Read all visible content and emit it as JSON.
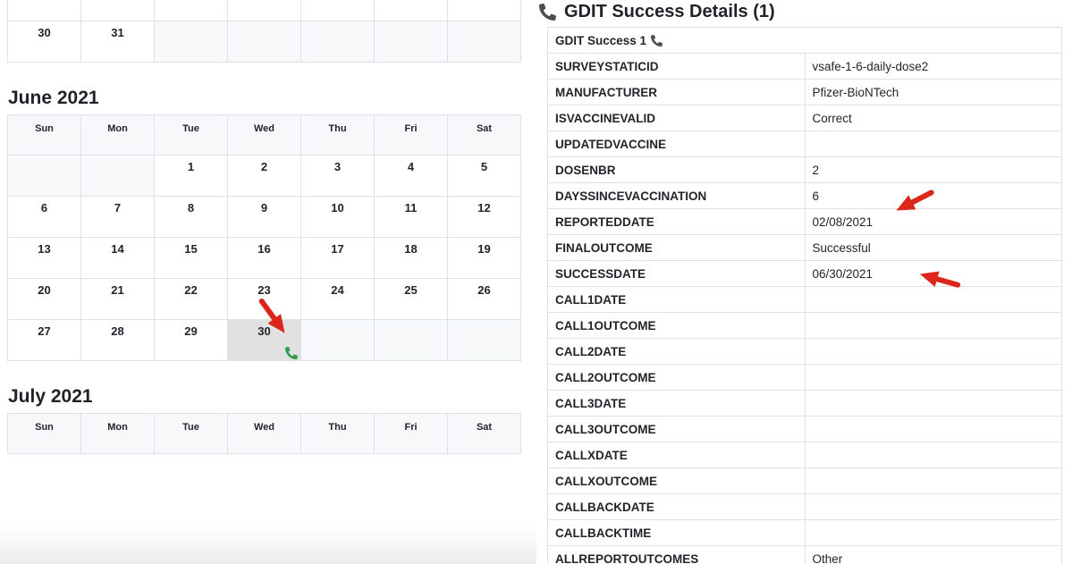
{
  "colors": {
    "arrow_red": "#dc261b",
    "phone_green": "#2f9e4f",
    "phone_dark": "#4a4f54",
    "highlight_gray": "#e1e1e1"
  },
  "calendars": {
    "may": {
      "trailing_week": [
        "30",
        "31",
        "",
        "",
        "",
        "",
        ""
      ]
    },
    "june": {
      "title": "June 2021",
      "weekdays": [
        "Sun",
        "Mon",
        "Tue",
        "Wed",
        "Thu",
        "Fri",
        "Sat"
      ],
      "weeks": [
        [
          "",
          "",
          "1",
          "2",
          "3",
          "4",
          "5"
        ],
        [
          "6",
          "7",
          "8",
          "9",
          "10",
          "11",
          "12"
        ],
        [
          "13",
          "14",
          "15",
          "16",
          "17",
          "18",
          "19"
        ],
        [
          "20",
          "21",
          "22",
          "23",
          "24",
          "25",
          "26"
        ],
        [
          "27",
          "28",
          "29",
          "30",
          "",
          "",
          ""
        ]
      ],
      "highlighted_day": "30",
      "event_day": "30"
    },
    "july": {
      "title": "July 2021",
      "weekdays": [
        "Sun",
        "Mon",
        "Tue",
        "Wed",
        "Thu",
        "Fri",
        "Sat"
      ]
    }
  },
  "details": {
    "title": "GDIT Success Details (1)",
    "group_header": "GDIT Success 1",
    "fields": [
      {
        "label": "SURVEYSTATICID",
        "value": "vsafe-1-6-daily-dose2"
      },
      {
        "label": "MANUFACTURER",
        "value": "Pfizer-BioNTech"
      },
      {
        "label": "ISVACCINEVALID",
        "value": "Correct"
      },
      {
        "label": "UPDATEDVACCINE",
        "value": ""
      },
      {
        "label": "DOSENBR",
        "value": "2"
      },
      {
        "label": "DAYSSINCEVACCINATION",
        "value": "6"
      },
      {
        "label": "REPORTEDDATE",
        "value": "02/08/2021"
      },
      {
        "label": "FINALOUTCOME",
        "value": "Successful"
      },
      {
        "label": "SUCCESSDATE",
        "value": "06/30/2021"
      },
      {
        "label": "CALL1DATE",
        "value": ""
      },
      {
        "label": "CALL1OUTCOME",
        "value": ""
      },
      {
        "label": "CALL2DATE",
        "value": ""
      },
      {
        "label": "CALL2OUTCOME",
        "value": ""
      },
      {
        "label": "CALL3DATE",
        "value": ""
      },
      {
        "label": "CALL3OUTCOME",
        "value": ""
      },
      {
        "label": "CALLXDATE",
        "value": ""
      },
      {
        "label": "CALLXOUTCOME",
        "value": ""
      },
      {
        "label": "CALLBACKDATE",
        "value": ""
      },
      {
        "label": "CALLBACKTIME",
        "value": ""
      },
      {
        "label": "ALLREPORTOUTCOMES",
        "value": "Other"
      }
    ]
  }
}
